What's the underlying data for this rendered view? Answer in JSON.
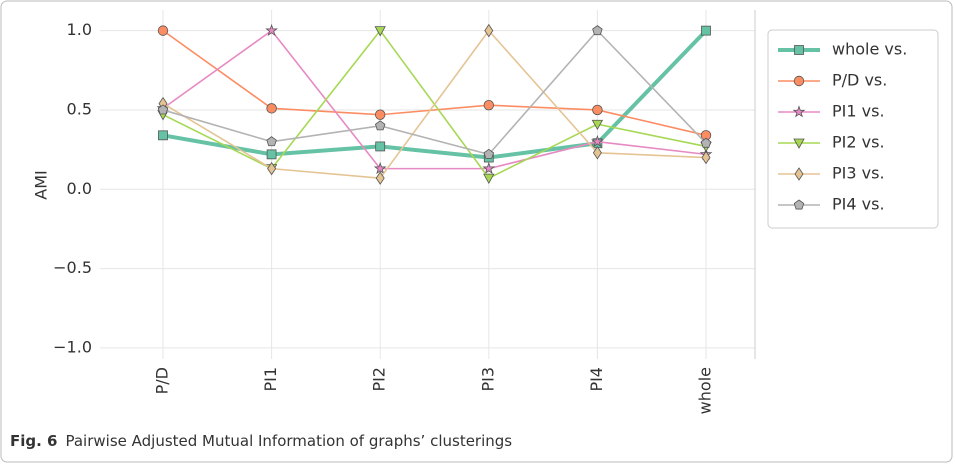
{
  "chart_data": {
    "type": "line",
    "ylabel": "AMI",
    "categories": [
      "P/D",
      "PI1",
      "PI2",
      "PI3",
      "PI4",
      "whole"
    ],
    "series": [
      {
        "name": "whole vs.",
        "color": "#66c2a5",
        "marker": "square",
        "values": [
          0.34,
          0.22,
          0.27,
          0.2,
          0.29,
          1.0
        ]
      },
      {
        "name": "P/D vs.",
        "color": "#fc8d62",
        "marker": "circle",
        "values": [
          1.0,
          0.51,
          0.47,
          0.53,
          0.5,
          0.34
        ]
      },
      {
        "name": "PI1 vs.",
        "color": "#e78ac3",
        "marker": "star",
        "values": [
          0.51,
          1.0,
          0.13,
          0.13,
          0.3,
          0.22
        ]
      },
      {
        "name": "PI2 vs.",
        "color": "#a6d854",
        "marker": "triangle-down",
        "values": [
          0.47,
          0.13,
          1.0,
          0.07,
          0.41,
          0.27
        ]
      },
      {
        "name": "PI3 vs.",
        "color": "#e5c494",
        "marker": "diamond",
        "values": [
          0.54,
          0.13,
          0.07,
          1.0,
          0.23,
          0.2
        ]
      },
      {
        "name": "PI4 vs.",
        "color": "#b3b3b3",
        "marker": "pentagon",
        "values": [
          0.5,
          0.3,
          0.4,
          0.22,
          1.0,
          0.29
        ]
      }
    ],
    "ylim": [
      -1.07,
      1.13
    ],
    "yticks": [
      {
        "value": -1.0,
        "label": "−1.0"
      },
      {
        "value": -0.5,
        "label": "−0.5"
      },
      {
        "value": 0.0,
        "label": "0.0"
      },
      {
        "value": 0.5,
        "label": "0.5"
      },
      {
        "value": 1.0,
        "label": "1.0"
      }
    ],
    "grid": true,
    "legend": "outside-right",
    "caption": {
      "label": "Fig. 6",
      "text": "Pairwise Adjusted Mutual Information of graphs’ clusterings"
    }
  }
}
